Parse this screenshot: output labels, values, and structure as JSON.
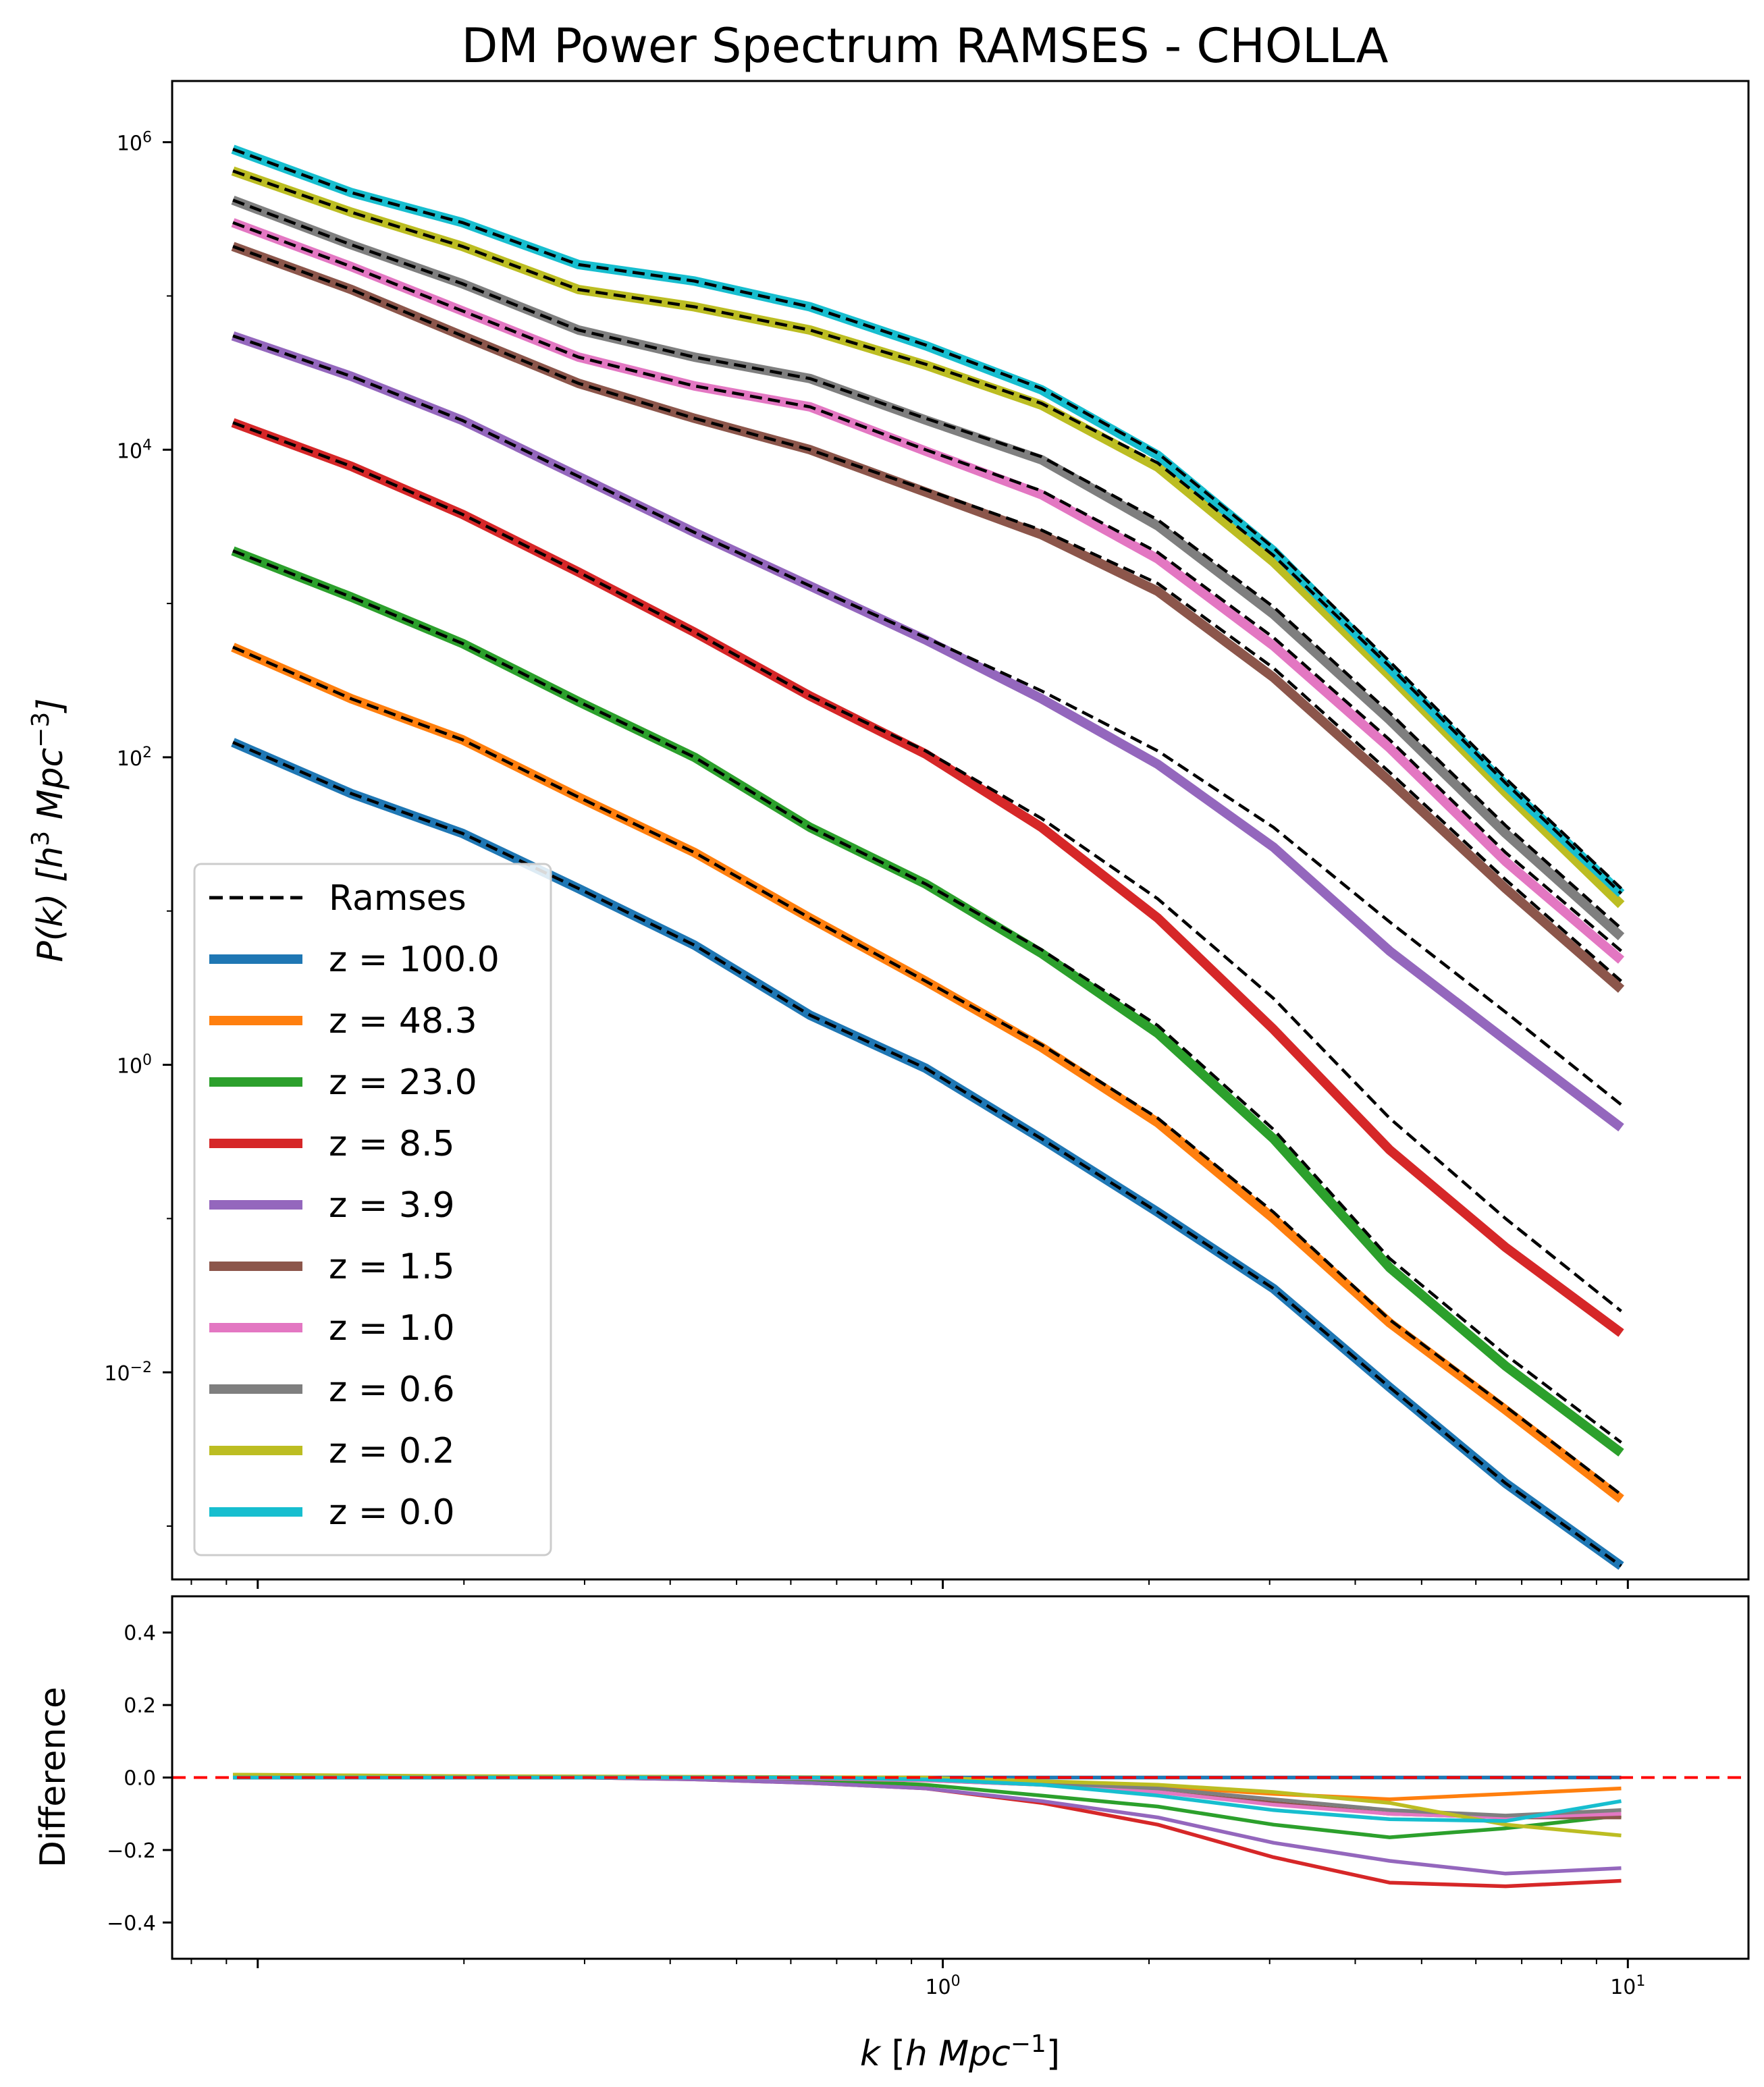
{
  "chart_data": [
    {
      "type": "line",
      "title": "DM Power Spectrum RAMSES - CHOLLA",
      "ylabel": "P(k)  [h^3 Mpc^-3]",
      "xlabel": "",
      "xscale": "log",
      "yscale": "log",
      "xlim": [
        0.075,
        15
      ],
      "ylim": [
        0.00045,
        2500000
      ],
      "yticks": [
        {
          "value": 1000000,
          "base": "10",
          "exp": "6"
        },
        {
          "value": 10000,
          "base": "10",
          "exp": "4"
        },
        {
          "value": 100,
          "base": "10",
          "exp": "2"
        },
        {
          "value": 1,
          "base": "10",
          "exp": "0"
        },
        {
          "value": 0.01,
          "base": "10",
          "exp": "−2"
        }
      ],
      "legend_position": "lower-left",
      "x": [
        0.092,
        0.137,
        0.199,
        0.294,
        0.434,
        0.64,
        0.944,
        1.394,
        2.06,
        3.04,
        4.49,
        6.63,
        9.78
      ],
      "reference": {
        "name": "Ramses",
        "color": "#000000",
        "style": "dashed",
        "series": [
          [
            125,
            58,
            32,
            14,
            6,
            2.1,
            0.95,
            0.33,
            0.11,
            0.035,
            0.008,
            0.0019,
            0.00055
          ],
          [
            520,
            240,
            130,
            55,
            24,
            9,
            3.5,
            1.35,
            0.45,
            0.11,
            0.022,
            0.006,
            0.0016
          ],
          [
            2200,
            1100,
            550,
            230,
            100,
            35,
            15,
            5.6,
            1.8,
            0.38,
            0.055,
            0.013,
            0.0035
          ],
          [
            15000,
            7800,
            3800,
            1600,
            650,
            250,
            110,
            40,
            12,
            2.7,
            0.45,
            0.1,
            0.025
          ],
          [
            55000,
            30000,
            15500,
            6700,
            2900,
            1300,
            600,
            270,
            110,
            35,
            8.5,
            2.2,
            0.55
          ],
          [
            210000,
            110000,
            55000,
            27000,
            16000,
            10000,
            5500,
            3000,
            1350,
            380,
            80,
            16,
            3.5
          ],
          [
            300000,
            155000,
            80000,
            40000,
            26000,
            19000,
            10000,
            5400,
            2150,
            600,
            130,
            24,
            5.5
          ],
          [
            420000,
            215000,
            120000,
            60000,
            40000,
            29000,
            16000,
            9000,
            3500,
            950,
            195,
            36,
            7.7
          ],
          [
            650000,
            350000,
            210000,
            110000,
            85000,
            60000,
            36000,
            20000,
            8200,
            2050,
            390,
            68,
            13
          ],
          [
            900000,
            470000,
            300000,
            160000,
            125000,
            85000,
            48000,
            25000,
            9500,
            2300,
            420,
            73,
            14
          ]
        ]
      },
      "series": [
        {
          "name": "z = 100.0",
          "color": "#1f77b4",
          "values": [
            125,
            58,
            32,
            14,
            6,
            2.1,
            0.95,
            0.33,
            0.11,
            0.035,
            0.008,
            0.0019,
            0.00055
          ]
        },
        {
          "name": "z = 48.3",
          "color": "#ff7f0e",
          "values": [
            520,
            240,
            130,
            55,
            24,
            9,
            3.5,
            1.3,
            0.42,
            0.1,
            0.021,
            0.0057,
            0.0015
          ]
        },
        {
          "name": "z = 23.0",
          "color": "#2ca02c",
          "values": [
            2200,
            1100,
            550,
            230,
            100,
            35,
            15,
            5.3,
            1.6,
            0.33,
            0.048,
            0.011,
            0.003
          ]
        },
        {
          "name": "z = 8.5",
          "color": "#d62728",
          "values": [
            15000,
            7800,
            3800,
            1600,
            650,
            250,
            105,
            35,
            9,
            1.7,
            0.28,
            0.065,
            0.018
          ]
        },
        {
          "name": "z = 3.9",
          "color": "#9467bd",
          "values": [
            55000,
            30000,
            15500,
            6700,
            2900,
            1300,
            580,
            240,
            90,
            26,
            5.5,
            1.45,
            0.39
          ]
        },
        {
          "name": "z = 1.5",
          "color": "#8c564b",
          "values": [
            210000,
            110000,
            55000,
            27000,
            16000,
            10000,
            5300,
            2800,
            1200,
            330,
            70,
            14,
            3.1
          ]
        },
        {
          "name": "z = 1.0",
          "color": "#e377c2",
          "values": [
            300000,
            155000,
            80000,
            40000,
            26000,
            19000,
            9800,
            5100,
            1950,
            530,
            115,
            21,
            4.8
          ]
        },
        {
          "name": "z = 0.6",
          "color": "#7f7f7f",
          "values": [
            420000,
            215000,
            120000,
            60000,
            40000,
            29000,
            15600,
            8600,
            3200,
            850,
            175,
            32,
            6.8
          ]
        },
        {
          "name": "z = 0.2",
          "color": "#bcbd22",
          "values": [
            650000,
            350000,
            210000,
            110000,
            85000,
            60000,
            35500,
            19500,
            7700,
            1860,
            340,
            59,
            11
          ]
        },
        {
          "name": "z = 0.0",
          "color": "#17becf",
          "values": [
            900000,
            470000,
            300000,
            160000,
            125000,
            85000,
            47500,
            24500,
            9200,
            2200,
            380,
            66,
            13
          ]
        }
      ]
    },
    {
      "type": "line",
      "xlabel": "k [h Mpc^-1]",
      "ylabel": "Difference",
      "xscale": "log",
      "xlim": [
        0.075,
        15
      ],
      "ylim": [
        -0.5,
        0.5
      ],
      "yticks": [
        0.4,
        0.2,
        0.0,
        -0.2,
        -0.4
      ],
      "ytick_labels": [
        "0.4",
        "0.2",
        "0.0",
        "−0.2",
        "−0.4"
      ],
      "xticks": [
        {
          "value": 1,
          "base": "10",
          "exp": "0"
        },
        {
          "value": 10,
          "base": "10",
          "exp": "1"
        }
      ],
      "reference_line": {
        "y": 0.0,
        "color": "#ff0000",
        "style": "dashed"
      },
      "x": [
        0.092,
        0.137,
        0.199,
        0.294,
        0.434,
        0.64,
        0.944,
        1.394,
        2.06,
        3.04,
        4.49,
        6.63,
        9.78
      ],
      "series": [
        {
          "name": "z = 100.0",
          "color": "#1f77b4",
          "values": [
            0,
            0,
            0,
            0,
            0,
            0,
            0,
            0,
            0,
            0,
            0,
            0,
            0
          ]
        },
        {
          "name": "z = 48.3",
          "color": "#ff7f0e",
          "values": [
            0.005,
            0.004,
            0.003,
            0.002,
            0.001,
            0,
            -0.005,
            -0.012,
            -0.025,
            -0.045,
            -0.06,
            -0.045,
            -0.03
          ]
        },
        {
          "name": "z = 23.0",
          "color": "#2ca02c",
          "values": [
            0.003,
            0.002,
            0.002,
            0.001,
            0,
            -0.005,
            -0.02,
            -0.05,
            -0.08,
            -0.13,
            -0.165,
            -0.14,
            -0.105
          ]
        },
        {
          "name": "z = 8.5",
          "color": "#d62728",
          "values": [
            0,
            0,
            0,
            0,
            -0.005,
            -0.015,
            -0.03,
            -0.07,
            -0.13,
            -0.22,
            -0.29,
            -0.3,
            -0.285
          ]
        },
        {
          "name": "z = 3.9",
          "color": "#9467bd",
          "values": [
            0,
            0,
            0,
            0,
            -0.005,
            -0.015,
            -0.03,
            -0.065,
            -0.11,
            -0.18,
            -0.23,
            -0.265,
            -0.25
          ]
        },
        {
          "name": "z = 1.5",
          "color": "#8c564b",
          "values": [
            0,
            0,
            0,
            0,
            0,
            -0.002,
            -0.008,
            -0.02,
            -0.04,
            -0.07,
            -0.1,
            -0.11,
            -0.11
          ]
        },
        {
          "name": "z = 1.0",
          "color": "#e377c2",
          "values": [
            0,
            0,
            0,
            0,
            0,
            -0.002,
            -0.008,
            -0.02,
            -0.04,
            -0.075,
            -0.1,
            -0.11,
            -0.1
          ]
        },
        {
          "name": "z = 0.6",
          "color": "#7f7f7f",
          "values": [
            0,
            0,
            0,
            0,
            0,
            0,
            -0.005,
            -0.015,
            -0.03,
            -0.06,
            -0.09,
            -0.105,
            -0.09
          ]
        },
        {
          "name": "z = 0.2",
          "color": "#bcbd22",
          "values": [
            0.008,
            0.006,
            0.004,
            0.003,
            0.002,
            0.001,
            0,
            -0.01,
            -0.02,
            -0.04,
            -0.07,
            -0.13,
            -0.16
          ]
        },
        {
          "name": "z = 0.0",
          "color": "#17becf",
          "values": [
            0,
            0,
            0,
            0,
            0,
            0,
            -0.005,
            -0.02,
            -0.05,
            -0.09,
            -0.115,
            -0.12,
            -0.065
          ]
        }
      ]
    }
  ]
}
